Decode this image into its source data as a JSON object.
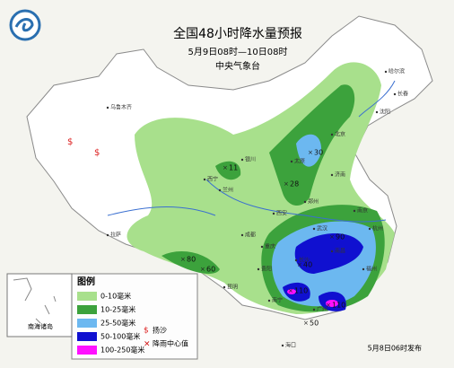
{
  "header": {
    "title": "全国48小时降水量预报",
    "period": "5月9日08时—10日08时",
    "issuer": "中央气象台"
  },
  "legend": {
    "title": "图例",
    "items": [
      {
        "label": "0-10毫米",
        "color": "#a8e08c"
      },
      {
        "label": "10-25毫米",
        "color": "#3ca23c"
      },
      {
        "label": "25-50毫米",
        "color": "#6cb8f0"
      },
      {
        "label": "50-100毫米",
        "color": "#1010d0"
      },
      {
        "label": "100-250毫米",
        "color": "#ff10ff"
      }
    ],
    "symbols": [
      {
        "label": "扬沙",
        "symbol": "$"
      },
      {
        "label": "降雨中心值",
        "symbol": "×"
      }
    ]
  },
  "inset": {
    "label": "南海诸岛"
  },
  "rain_centers": [
    30,
    11,
    28,
    90,
    80,
    60,
    40,
    110,
    110,
    50
  ],
  "cities": [
    "乌鲁木齐",
    "拉萨",
    "西宁",
    "兰州",
    "银川",
    "西安",
    "成都",
    "重庆",
    "贵阳",
    "昆明",
    "南宁",
    "广州",
    "长沙",
    "武汉",
    "郑州",
    "济南",
    "北京",
    "太原",
    "哈尔滨",
    "长春",
    "沈阳",
    "南京",
    "杭州",
    "南昌",
    "福州",
    "海口"
  ],
  "footer": "5月8日06时发布"
}
